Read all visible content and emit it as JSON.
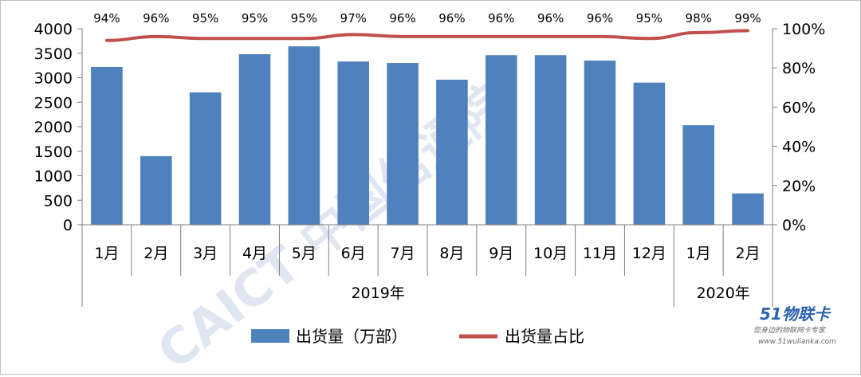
{
  "chart_data": {
    "type": "bar",
    "categories": [
      "1月",
      "2月",
      "3月",
      "4月",
      "5月",
      "6月",
      "7月",
      "8月",
      "9月",
      "10月",
      "11月",
      "12月",
      "1月",
      "2月"
    ],
    "groups": [
      {
        "label": "2019年",
        "count": 12
      },
      {
        "label": "2020年",
        "count": 2
      }
    ],
    "series": [
      {
        "name": "出货量（万部）",
        "kind": "bar",
        "axis": "left",
        "color": "#4f81bd",
        "values": [
          3220,
          1400,
          2700,
          3480,
          3640,
          3330,
          3300,
          2960,
          3460,
          3460,
          3350,
          2900,
          2030,
          640
        ]
      },
      {
        "name": "出货量占比",
        "kind": "line",
        "axis": "right",
        "color": "#c0504d",
        "values": [
          94,
          96,
          95,
          95,
          95,
          97,
          96,
          96,
          96,
          96,
          96,
          95,
          98,
          99
        ],
        "labels": [
          "94%",
          "96%",
          "95%",
          "95%",
          "95%",
          "97%",
          "96%",
          "96%",
          "96%",
          "96%",
          "96%",
          "95%",
          "98%",
          "99%"
        ]
      }
    ],
    "ylim": [
      0,
      4000
    ],
    "yticks": [
      "0",
      "500",
      "1000",
      "1500",
      "2000",
      "2500",
      "3000",
      "3500",
      "4000"
    ],
    "y2lim": [
      0,
      100
    ],
    "y2ticks": [
      "0%",
      "20%",
      "40%",
      "60%",
      "80%",
      "100%"
    ],
    "legend_position": "bottom",
    "grid": false
  },
  "watermark": "CAICT 中国信通院",
  "logo": {
    "text": "51物联卡",
    "tagline": "您身边的物联网卡专家",
    "url": "www.51wulianka.com"
  }
}
